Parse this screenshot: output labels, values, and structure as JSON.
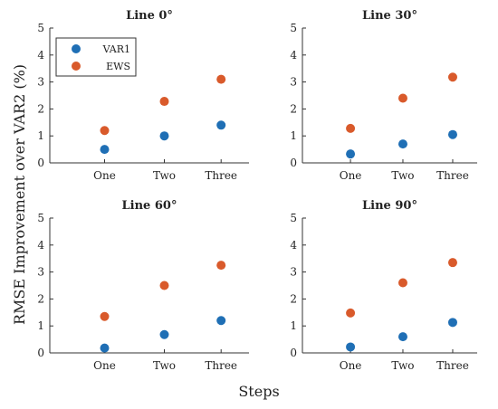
{
  "figure": {
    "ylabel": "RMSE Improvement over VAR2 (%)",
    "xlabel": "Steps"
  },
  "legend": {
    "items": [
      {
        "label": "VAR1",
        "color": "#1f6fb5"
      },
      {
        "label": "EWS",
        "color": "#d95a2b"
      }
    ]
  },
  "chart_data": [
    {
      "type": "scatter",
      "title": "Line 0°",
      "categories": [
        "One",
        "Two",
        "Three"
      ],
      "ylim": [
        0,
        5
      ],
      "yticks": [
        0,
        1,
        2,
        3,
        4,
        5
      ],
      "series": [
        {
          "name": "VAR1",
          "values": [
            0.5,
            1.0,
            1.4
          ]
        },
        {
          "name": "EWS",
          "values": [
            1.2,
            2.28,
            3.1
          ]
        }
      ]
    },
    {
      "type": "scatter",
      "title": "Line 30°",
      "categories": [
        "One",
        "Two",
        "Three"
      ],
      "ylim": [
        0,
        5
      ],
      "yticks": [
        0,
        1,
        2,
        3,
        4,
        5
      ],
      "series": [
        {
          "name": "VAR1",
          "values": [
            0.33,
            0.7,
            1.05
          ]
        },
        {
          "name": "EWS",
          "values": [
            1.28,
            2.4,
            3.18
          ]
        }
      ]
    },
    {
      "type": "scatter",
      "title": "Line 60°",
      "categories": [
        "One",
        "Two",
        "Three"
      ],
      "ylim": [
        0,
        5
      ],
      "yticks": [
        0,
        1,
        2,
        3,
        4,
        5
      ],
      "series": [
        {
          "name": "VAR1",
          "values": [
            0.18,
            0.68,
            1.2
          ]
        },
        {
          "name": "EWS",
          "values": [
            1.35,
            2.5,
            3.25
          ]
        }
      ]
    },
    {
      "type": "scatter",
      "title": "Line 90°",
      "categories": [
        "One",
        "Two",
        "Three"
      ],
      "ylim": [
        0,
        5
      ],
      "yticks": [
        0,
        1,
        2,
        3,
        4,
        5
      ],
      "series": [
        {
          "name": "VAR1",
          "values": [
            0.22,
            0.6,
            1.13
          ]
        },
        {
          "name": "EWS",
          "values": [
            1.48,
            2.6,
            3.35
          ]
        }
      ]
    }
  ]
}
